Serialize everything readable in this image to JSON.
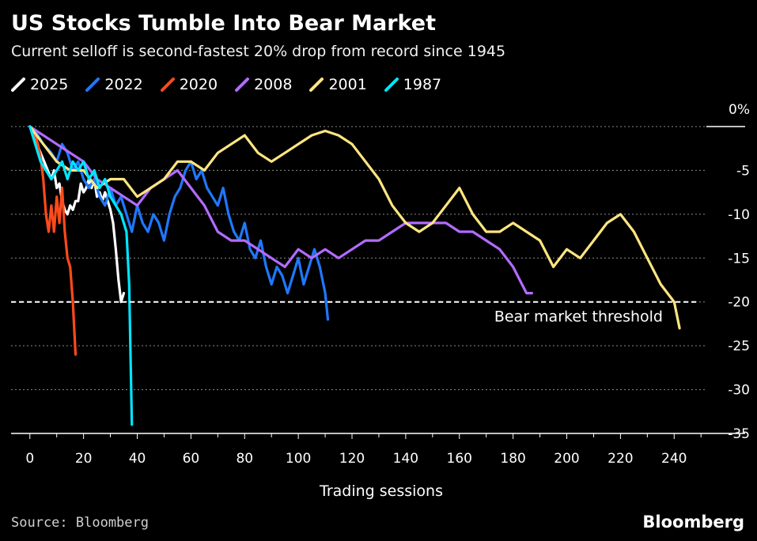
{
  "header": {
    "title": "US Stocks Tumble Into Bear Market",
    "subtitle": "Current selloff is second-fastest 20% drop from record since 1945"
  },
  "footer": {
    "source": "Source: Bloomberg",
    "brand": "Bloomberg"
  },
  "chart_data": {
    "type": "line",
    "title": "US Stocks Tumble Into Bear Market",
    "subtitle": "Current selloff is second-fastest 20% drop from record since 1945",
    "xlabel": "Trading sessions",
    "ylabel": "",
    "xlim": [
      -7,
      252
    ],
    "ylim": [
      -35,
      0
    ],
    "x_ticks": [
      0,
      20,
      40,
      60,
      80,
      100,
      120,
      140,
      160,
      180,
      200,
      220,
      240
    ],
    "y_ticks": [
      0,
      -5,
      -10,
      -15,
      -20,
      -25,
      -30,
      -35
    ],
    "y_tick_labels": [
      "0%",
      "-5",
      "-10",
      "-15",
      "-20",
      "-25",
      "-30",
      "-35"
    ],
    "grid": "horizontal-dotted",
    "legend_position": "top-left",
    "threshold": {
      "value": -20,
      "label": "Bear market threshold"
    },
    "series": [
      {
        "name": "2025",
        "color": "#ffffff",
        "points": [
          [
            0,
            0
          ],
          [
            2,
            -1.5
          ],
          [
            4,
            -3
          ],
          [
            6,
            -4.5
          ],
          [
            8,
            -6
          ],
          [
            9,
            -5
          ],
          [
            10,
            -7
          ],
          [
            11,
            -6.5
          ],
          [
            12,
            -8.5
          ],
          [
            13,
            -9.5
          ],
          [
            14,
            -10
          ],
          [
            15,
            -9
          ],
          [
            16,
            -9.5
          ],
          [
            17,
            -8.5
          ],
          [
            18,
            -8.5
          ],
          [
            19,
            -6.5
          ],
          [
            20,
            -7.5
          ],
          [
            21,
            -7
          ],
          [
            22,
            -6
          ],
          [
            23,
            -7
          ],
          [
            24,
            -6
          ],
          [
            25,
            -8
          ],
          [
            26,
            -7.5
          ],
          [
            27,
            -8.5
          ],
          [
            28,
            -7.5
          ],
          [
            29,
            -8.5
          ],
          [
            30,
            -9.5
          ],
          [
            31,
            -11
          ],
          [
            32,
            -14
          ],
          [
            33,
            -17.5
          ],
          [
            34,
            -20
          ],
          [
            35,
            -19
          ]
        ]
      },
      {
        "name": "2022",
        "color": "#1f78ff",
        "points": [
          [
            0,
            0
          ],
          [
            3,
            -1
          ],
          [
            5,
            -2
          ],
          [
            8,
            -3
          ],
          [
            10,
            -4
          ],
          [
            12,
            -2
          ],
          [
            14,
            -3
          ],
          [
            16,
            -5
          ],
          [
            18,
            -4
          ],
          [
            20,
            -6
          ],
          [
            22,
            -7
          ],
          [
            24,
            -6
          ],
          [
            26,
            -8
          ],
          [
            28,
            -9
          ],
          [
            30,
            -7
          ],
          [
            32,
            -9
          ],
          [
            34,
            -8
          ],
          [
            36,
            -10
          ],
          [
            38,
            -12
          ],
          [
            40,
            -9
          ],
          [
            42,
            -11
          ],
          [
            44,
            -12
          ],
          [
            46,
            -10
          ],
          [
            48,
            -11
          ],
          [
            50,
            -13
          ],
          [
            52,
            -10
          ],
          [
            54,
            -8
          ],
          [
            56,
            -7
          ],
          [
            58,
            -5
          ],
          [
            60,
            -4
          ],
          [
            62,
            -6
          ],
          [
            64,
            -5
          ],
          [
            66,
            -7
          ],
          [
            68,
            -8
          ],
          [
            70,
            -9
          ],
          [
            72,
            -7
          ],
          [
            74,
            -10
          ],
          [
            76,
            -12
          ],
          [
            78,
            -13
          ],
          [
            80,
            -11
          ],
          [
            82,
            -14
          ],
          [
            84,
            -15
          ],
          [
            86,
            -13
          ],
          [
            88,
            -16
          ],
          [
            90,
            -18
          ],
          [
            92,
            -16
          ],
          [
            94,
            -17
          ],
          [
            96,
            -19
          ],
          [
            98,
            -17
          ],
          [
            100,
            -15
          ],
          [
            102,
            -18
          ],
          [
            104,
            -16
          ],
          [
            106,
            -14
          ],
          [
            108,
            -16
          ],
          [
            110,
            -19
          ],
          [
            111,
            -22
          ]
        ]
      },
      {
        "name": "2020",
        "color": "#ff4a1c",
        "points": [
          [
            0,
            0
          ],
          [
            1,
            -0.5
          ],
          [
            2,
            -1
          ],
          [
            3,
            -2
          ],
          [
            4,
            -3.5
          ],
          [
            5,
            -6
          ],
          [
            6,
            -10
          ],
          [
            7,
            -12
          ],
          [
            8,
            -9
          ],
          [
            9,
            -12
          ],
          [
            10,
            -8
          ],
          [
            11,
            -11
          ],
          [
            12,
            -7
          ],
          [
            13,
            -12
          ],
          [
            14,
            -15
          ],
          [
            15,
            -16
          ],
          [
            16,
            -20
          ],
          [
            17,
            -26
          ]
        ]
      },
      {
        "name": "2008",
        "color": "#b36bff",
        "points": [
          [
            0,
            0
          ],
          [
            5,
            -1
          ],
          [
            10,
            -2
          ],
          [
            15,
            -3
          ],
          [
            20,
            -4
          ],
          [
            25,
            -6
          ],
          [
            30,
            -7
          ],
          [
            35,
            -8
          ],
          [
            40,
            -9
          ],
          [
            45,
            -7
          ],
          [
            50,
            -6
          ],
          [
            55,
            -5
          ],
          [
            60,
            -7
          ],
          [
            65,
            -9
          ],
          [
            70,
            -12
          ],
          [
            75,
            -13
          ],
          [
            80,
            -13
          ],
          [
            85,
            -14
          ],
          [
            90,
            -15
          ],
          [
            95,
            -16
          ],
          [
            100,
            -14
          ],
          [
            105,
            -15
          ],
          [
            110,
            -14
          ],
          [
            115,
            -15
          ],
          [
            120,
            -14
          ],
          [
            125,
            -13
          ],
          [
            130,
            -13
          ],
          [
            135,
            -12
          ],
          [
            140,
            -11
          ],
          [
            145,
            -11
          ],
          [
            150,
            -11
          ],
          [
            155,
            -11
          ],
          [
            160,
            -12
          ],
          [
            165,
            -12
          ],
          [
            170,
            -13
          ],
          [
            175,
            -14
          ],
          [
            180,
            -16
          ],
          [
            185,
            -19
          ],
          [
            187,
            -19
          ]
        ]
      },
      {
        "name": "2001",
        "color": "#ffe680",
        "points": [
          [
            0,
            0
          ],
          [
            5,
            -2
          ],
          [
            10,
            -4
          ],
          [
            15,
            -5
          ],
          [
            20,
            -5
          ],
          [
            25,
            -7
          ],
          [
            30,
            -6
          ],
          [
            35,
            -6
          ],
          [
            40,
            -8
          ],
          [
            45,
            -7
          ],
          [
            50,
            -6
          ],
          [
            55,
            -4
          ],
          [
            60,
            -4
          ],
          [
            65,
            -5
          ],
          [
            70,
            -3
          ],
          [
            75,
            -2
          ],
          [
            80,
            -1
          ],
          [
            85,
            -3
          ],
          [
            90,
            -4
          ],
          [
            95,
            -3
          ],
          [
            100,
            -2
          ],
          [
            105,
            -1
          ],
          [
            110,
            -0.5
          ],
          [
            115,
            -1
          ],
          [
            120,
            -2
          ],
          [
            125,
            -4
          ],
          [
            130,
            -6
          ],
          [
            135,
            -9
          ],
          [
            140,
            -11
          ],
          [
            145,
            -12
          ],
          [
            150,
            -11
          ],
          [
            155,
            -9
          ],
          [
            160,
            -7
          ],
          [
            165,
            -10
          ],
          [
            170,
            -12
          ],
          [
            175,
            -12
          ],
          [
            180,
            -11
          ],
          [
            185,
            -12
          ],
          [
            190,
            -13
          ],
          [
            195,
            -16
          ],
          [
            200,
            -14
          ],
          [
            205,
            -15
          ],
          [
            210,
            -13
          ],
          [
            215,
            -11
          ],
          [
            220,
            -10
          ],
          [
            225,
            -12
          ],
          [
            230,
            -15
          ],
          [
            235,
            -18
          ],
          [
            240,
            -20
          ],
          [
            242,
            -23
          ]
        ]
      },
      {
        "name": "1987",
        "color": "#00e5ff",
        "points": [
          [
            0,
            0
          ],
          [
            2,
            -2
          ],
          [
            4,
            -4
          ],
          [
            6,
            -5
          ],
          [
            8,
            -6
          ],
          [
            10,
            -5
          ],
          [
            12,
            -4
          ],
          [
            14,
            -6
          ],
          [
            16,
            -4
          ],
          [
            18,
            -5
          ],
          [
            20,
            -4
          ],
          [
            22,
            -6
          ],
          [
            24,
            -5
          ],
          [
            26,
            -7
          ],
          [
            28,
            -6
          ],
          [
            30,
            -8
          ],
          [
            32,
            -9
          ],
          [
            34,
            -10
          ],
          [
            36,
            -12
          ],
          [
            37,
            -18
          ],
          [
            38,
            -34
          ]
        ]
      }
    ]
  }
}
